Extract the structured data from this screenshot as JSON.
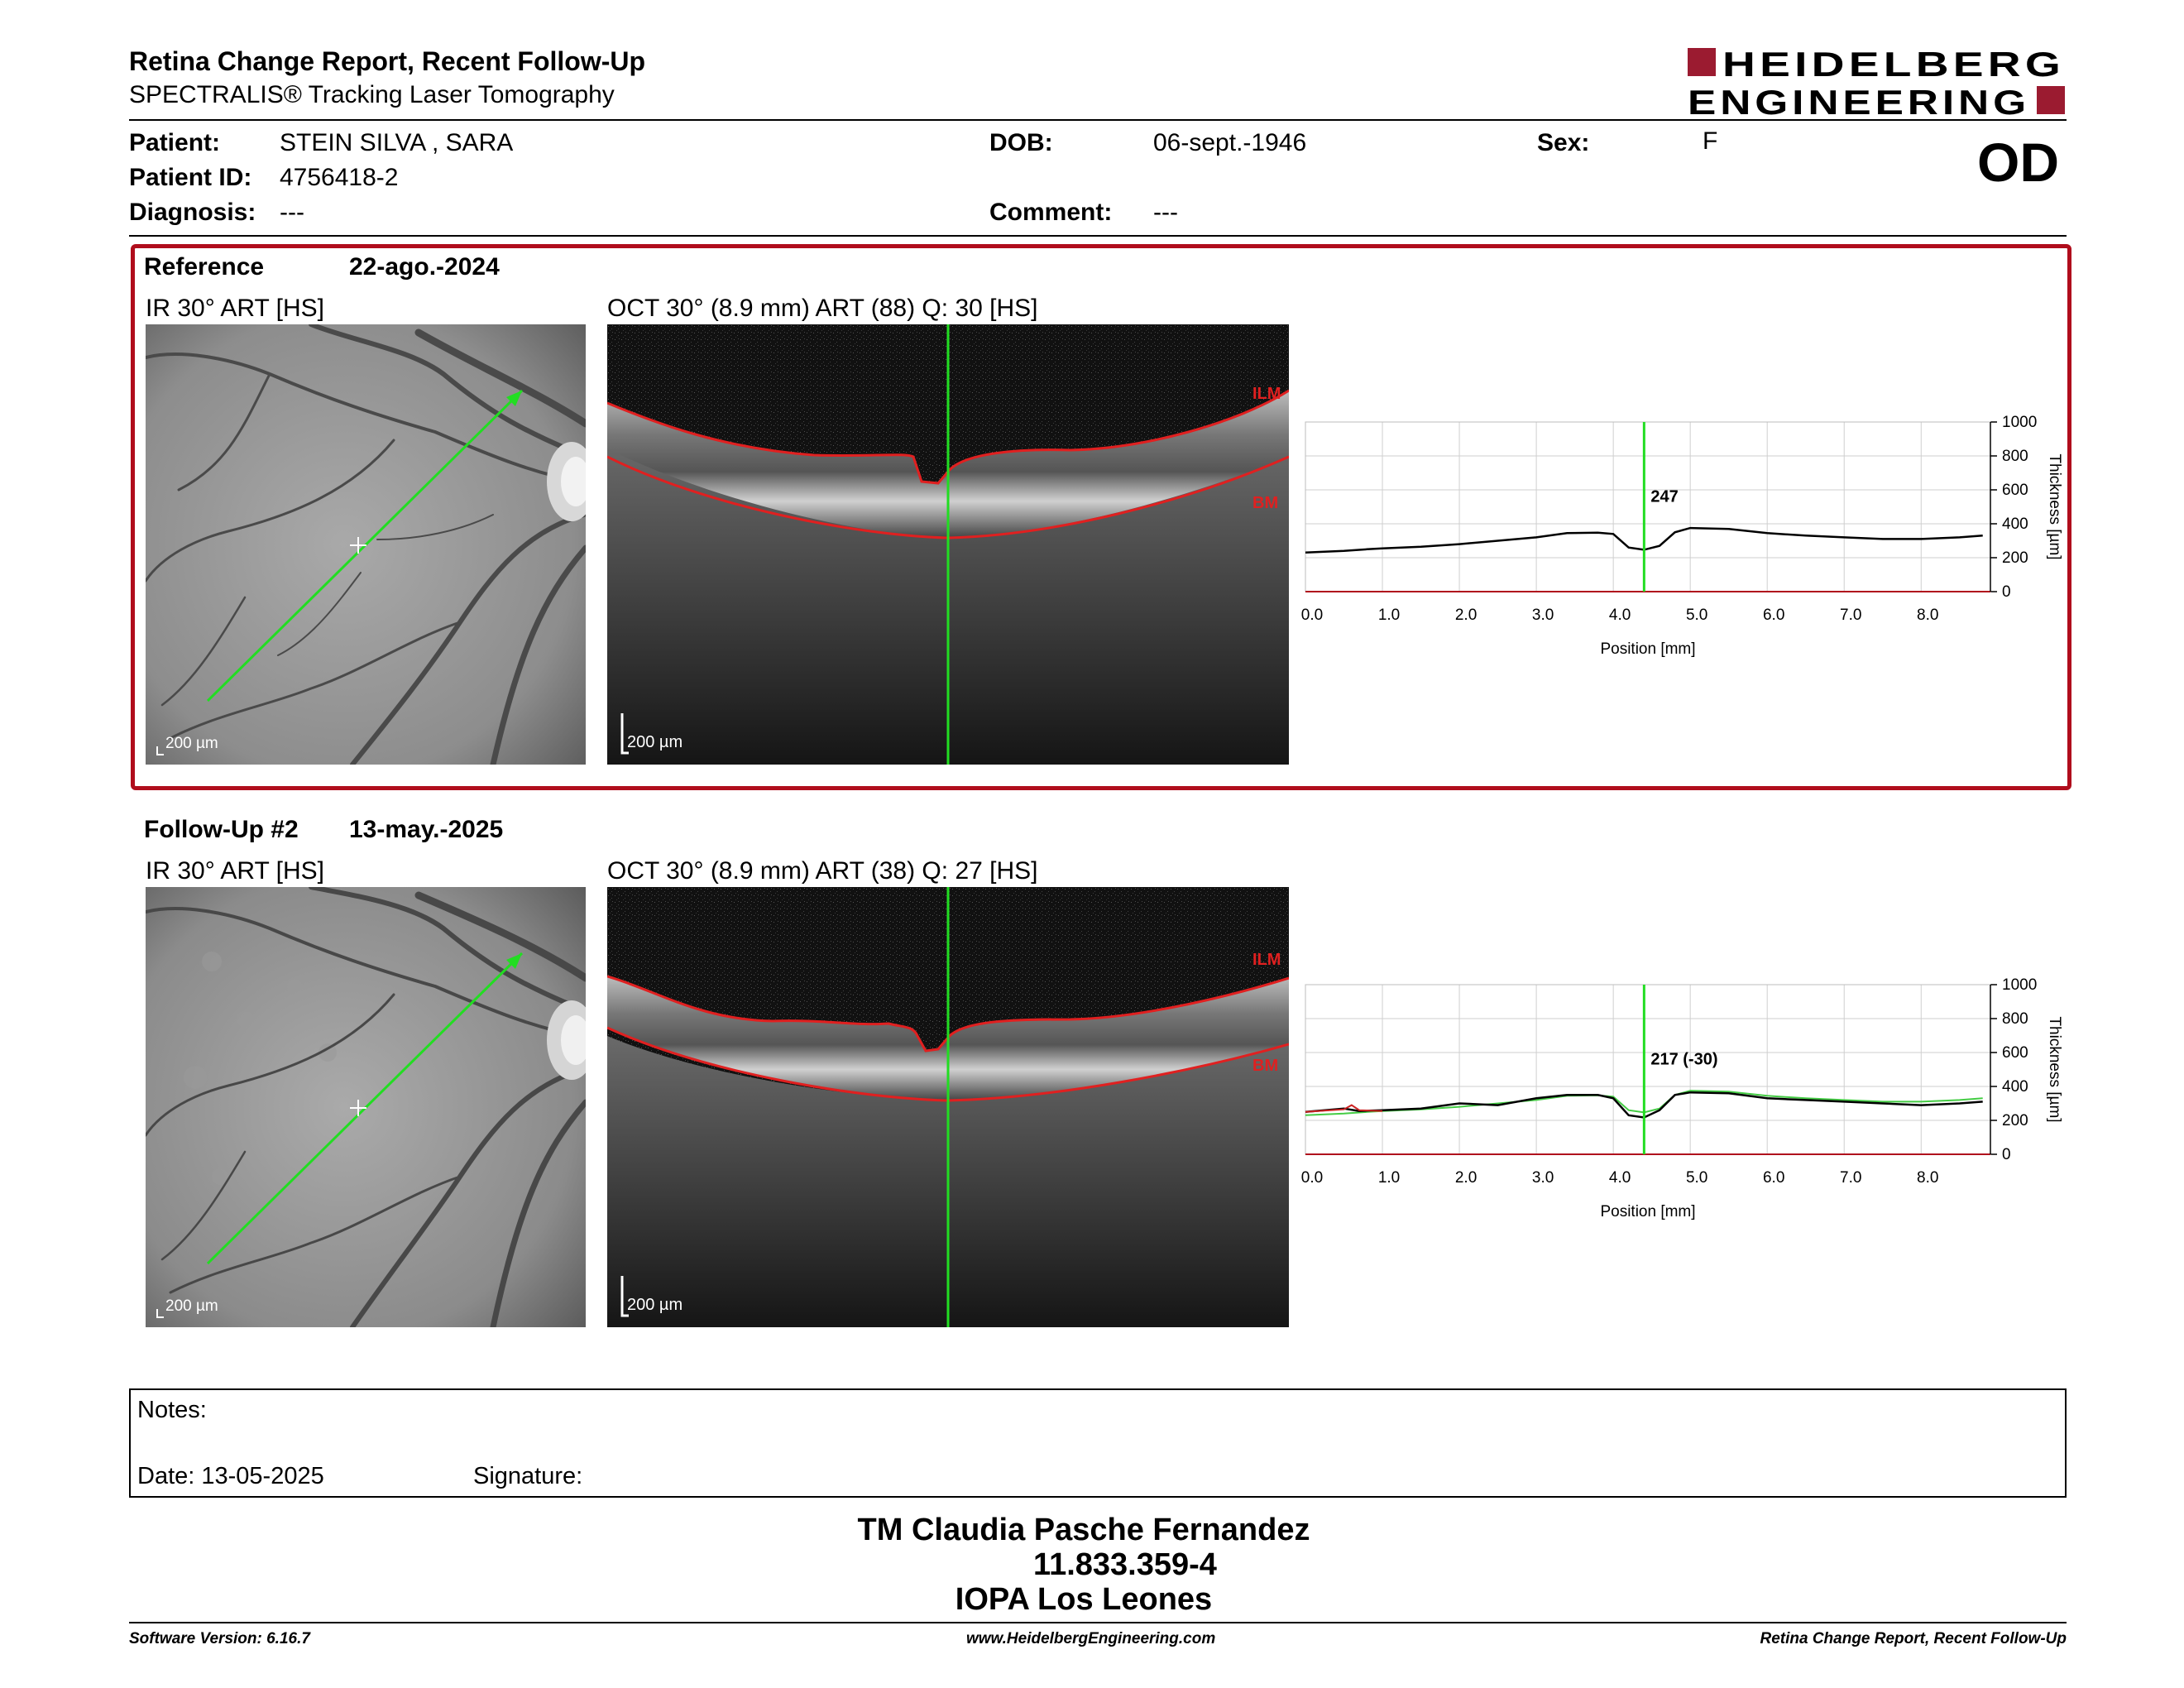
{
  "header": {
    "title": "Retina Change Report, Recent Follow-Up",
    "subtitle": "SPECTRALIS® Tracking Laser Tomography",
    "logo_line1": "HEIDELBERG",
    "logo_line2": "ENGINEERING",
    "logo_color": "#9b1b30"
  },
  "patient": {
    "patient_label": "Patient:",
    "patient_name": "STEIN SILVA , SARA",
    "id_label": "Patient ID:",
    "id_value": "4756418-2",
    "diagnosis_label": "Diagnosis:",
    "diagnosis_value": "---",
    "dob_label": "DOB:",
    "dob_value": "06-sept.-1946",
    "comment_label": "Comment:",
    "comment_value": "---",
    "sex_label": "Sex:",
    "sex_value": "F",
    "eye": "OD"
  },
  "reference": {
    "label": "Reference",
    "date": "22-ago.-2024",
    "ir_caption": "IR 30° ART [HS]",
    "oct_caption": "OCT 30° (8.9 mm) ART (88) Q: 30 [HS]",
    "scale": "200 µm",
    "ilm": "ILM",
    "bm": "BM",
    "border_color": "#b00d1c"
  },
  "followup": {
    "label": "Follow-Up #2",
    "date": "13-may.-2025",
    "ir_caption": "IR 30° ART [HS]",
    "oct_caption": "OCT 30° (8.9 mm) ART (38) Q: 27 [HS]",
    "scale": "200 µm",
    "ilm": "ILM",
    "bm": "BM"
  },
  "chart_data": [
    {
      "type": "line",
      "xlabel": "Position [mm]",
      "ylabel": "Thickness [µm]",
      "xlim": [
        0,
        8.9
      ],
      "ylim": [
        0,
        1000
      ],
      "xticks": [
        "0.0",
        "1.0",
        "2.0",
        "3.0",
        "4.0",
        "5.0",
        "6.0",
        "7.0",
        "8.0"
      ],
      "yticks": [
        "0",
        "200",
        "400",
        "600",
        "800",
        "1000"
      ],
      "grid": true,
      "marker_x": 4.4,
      "marker_label": "247",
      "series": [
        {
          "color": "#000000",
          "x": [
            0,
            0.5,
            0.8,
            1.0,
            1.5,
            2.0,
            2.5,
            3.0,
            3.4,
            3.8,
            4.0,
            4.2,
            4.4,
            4.6,
            4.8,
            5.0,
            5.5,
            6.0,
            6.5,
            7.0,
            7.5,
            8.0,
            8.5,
            8.8
          ],
          "y": [
            230,
            240,
            250,
            255,
            265,
            280,
            300,
            320,
            345,
            348,
            340,
            260,
            247,
            270,
            350,
            375,
            370,
            345,
            330,
            320,
            310,
            310,
            320,
            330
          ]
        }
      ]
    },
    {
      "type": "line",
      "xlabel": "Position [mm]",
      "ylabel": "Thickness [µm]",
      "xlim": [
        0,
        8.9
      ],
      "ylim": [
        0,
        1000
      ],
      "xticks": [
        "0.0",
        "1.0",
        "2.0",
        "3.0",
        "4.0",
        "5.0",
        "6.0",
        "7.0",
        "8.0"
      ],
      "yticks": [
        "0",
        "200",
        "400",
        "600",
        "800",
        "1000"
      ],
      "grid": true,
      "marker_x": 4.4,
      "marker_label": "217 (-30)",
      "series": [
        {
          "color": "#44cc44",
          "x": [
            0,
            0.5,
            0.8,
            1.0,
            1.5,
            2.0,
            2.5,
            3.0,
            3.4,
            3.8,
            4.0,
            4.2,
            4.4,
            4.6,
            4.8,
            5.0,
            5.5,
            6.0,
            6.5,
            7.0,
            7.5,
            8.0,
            8.5,
            8.8
          ],
          "y": [
            230,
            240,
            250,
            255,
            265,
            280,
            300,
            320,
            345,
            348,
            340,
            260,
            247,
            270,
            350,
            375,
            370,
            345,
            330,
            320,
            310,
            310,
            320,
            330
          ]
        },
        {
          "color": "#000000",
          "x": [
            0,
            0.5,
            0.7,
            1.0,
            1.5,
            2.0,
            2.5,
            3.0,
            3.4,
            3.8,
            4.0,
            4.2,
            4.4,
            4.6,
            4.8,
            5.0,
            5.5,
            6.0,
            6.5,
            7.0,
            7.5,
            8.0,
            8.5,
            8.8
          ],
          "y": [
            250,
            270,
            255,
            260,
            270,
            300,
            290,
            330,
            350,
            350,
            330,
            230,
            217,
            260,
            350,
            365,
            360,
            330,
            320,
            310,
            300,
            290,
            300,
            310
          ]
        },
        {
          "color": "#cc2222",
          "x": [
            0,
            0.5,
            0.6,
            0.7,
            1.0
          ],
          "y": [
            250,
            265,
            290,
            260,
            255
          ]
        }
      ]
    }
  ],
  "notes": {
    "label": "Notes:",
    "date_label": "Date: 13-05-2025",
    "signature_label": "Signature:"
  },
  "clinic": {
    "line1": "TM Claudia Pasche Fernandez",
    "line2": "11.833.359-4",
    "line3": "IOPA Los Leones"
  },
  "footer": {
    "left": "Software Version: 6.16.7",
    "center": "www.HeidelbergEngineering.com",
    "right": "Retina Change Report, Recent Follow-Up"
  }
}
